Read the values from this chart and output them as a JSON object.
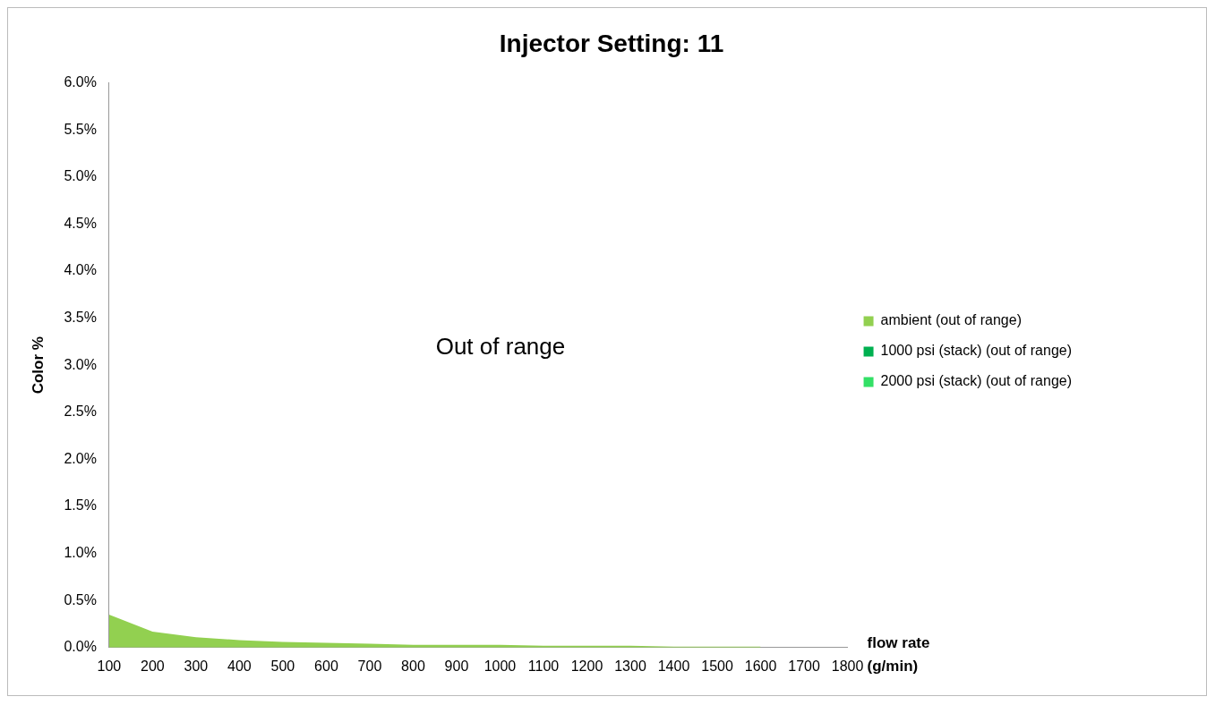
{
  "chart_data": {
    "type": "area",
    "title": "Injector Setting: 11",
    "xlabel": "flow rate (g/min)",
    "ylabel": "Color %",
    "categories": [
      "100",
      "200",
      "300",
      "400",
      "500",
      "600",
      "700",
      "800",
      "900",
      "1000",
      "1100",
      "1200",
      "1300",
      "1400",
      "1500",
      "1600",
      "1700",
      "1800"
    ],
    "series": [
      {
        "name": "ambient (out of range)",
        "color": "#92d050",
        "values": [
          0.35,
          0.17,
          0.11,
          0.08,
          0.06,
          0.05,
          0.04,
          0.03,
          0.03,
          0.03,
          0.02,
          0.02,
          0.02,
          0.01,
          0.01,
          0.01,
          null,
          null
        ]
      },
      {
        "name": "1000 psi (stack) (out of range)",
        "color": "#00b050",
        "values": [
          null,
          null,
          null,
          null,
          null,
          null,
          null,
          null,
          null,
          null,
          null,
          null,
          null,
          null,
          null,
          null,
          null,
          null
        ]
      },
      {
        "name": "2000 psi (stack) (out of range)",
        "color": "#33e066",
        "values": [
          null,
          null,
          null,
          null,
          null,
          null,
          null,
          null,
          null,
          null,
          null,
          null,
          null,
          null,
          null,
          null,
          null,
          null
        ]
      }
    ],
    "ylim": [
      0,
      6
    ],
    "yticks": [
      {
        "value": 0,
        "label": "0.0%"
      },
      {
        "value": 0.5,
        "label": "0.5%"
      },
      {
        "value": 1,
        "label": "1.0%"
      },
      {
        "value": 1.5,
        "label": "1.5%"
      },
      {
        "value": 2,
        "label": "2.0%"
      },
      {
        "value": 2.5,
        "label": "2.5%"
      },
      {
        "value": 3,
        "label": "3.0%"
      },
      {
        "value": 3.5,
        "label": "3.5%"
      },
      {
        "value": 4,
        "label": "4.0%"
      },
      {
        "value": 4.5,
        "label": "4.5%"
      },
      {
        "value": 5,
        "label": "5.0%"
      },
      {
        "value": 5.5,
        "label": "5.5%"
      },
      {
        "value": 6,
        "label": "6.0%"
      }
    ],
    "grid": false,
    "legend": "right",
    "annotations": [
      "Out of range"
    ]
  }
}
